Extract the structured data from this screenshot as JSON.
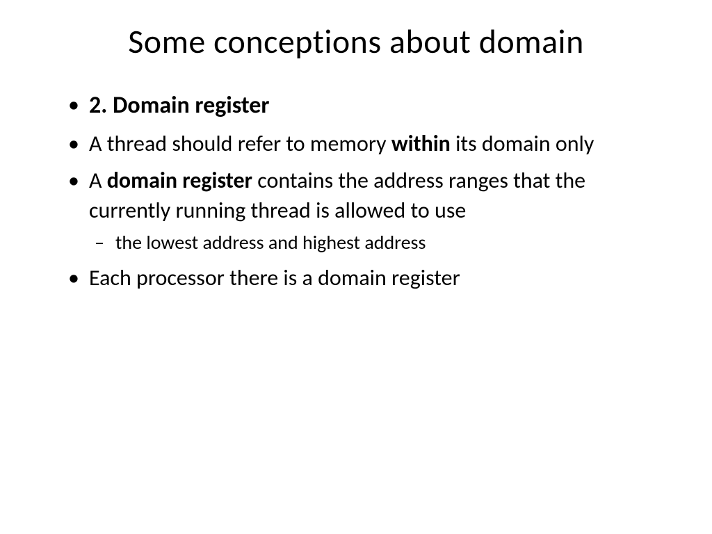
{
  "title": "Some conceptions about domain",
  "bullets": {
    "b1": "2. Domain register",
    "b2_pre": "A thread should refer to memory ",
    "b2_bold": "within",
    "b2_post": " its domain  only",
    "b3_pre": "A ",
    "b3_bold": "domain register",
    "b3_post": " contains the address ranges that the currently running thread is allowed to use",
    "b3_sub": "the lowest address and highest address",
    "b4": "Each processor there is a domain register"
  },
  "colors": {
    "background": "#ffffff",
    "text": "#000000"
  },
  "typography": {
    "title_fontsize": 48,
    "bullet_fontsize": 32,
    "sub_fontsize": 28,
    "font_family": "Calibri"
  }
}
